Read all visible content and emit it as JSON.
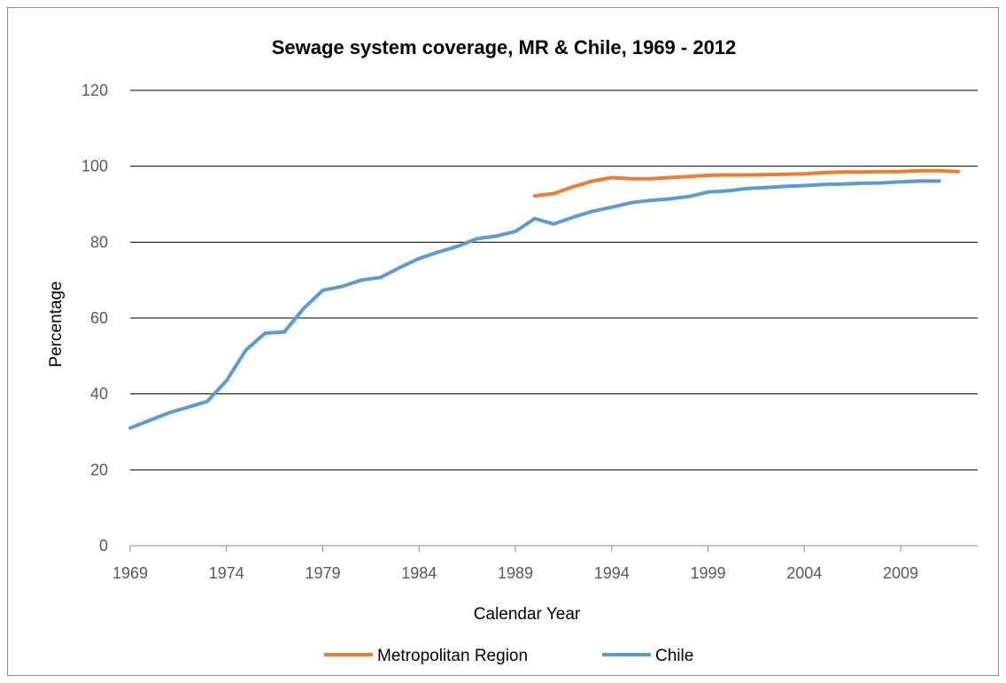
{
  "chart_data": {
    "type": "line",
    "title": "Sewage system coverage, MR & Chile, 1969 - 2012",
    "xlabel": "Calendar Year",
    "ylabel": "Percentage",
    "xlim": [
      1969,
      2013
    ],
    "ylim": [
      0,
      120
    ],
    "yticks": [
      0,
      20,
      40,
      60,
      80,
      100,
      120
    ],
    "xticks": [
      1969,
      1974,
      1979,
      1984,
      1989,
      1994,
      1999,
      2004,
      2009
    ],
    "grid": true,
    "legend_position": "bottom",
    "series": [
      {
        "name": "Metropolitan Region",
        "color": "#ED7D31",
        "x": [
          1990,
          1991,
          1992,
          1993,
          1994,
          1995,
          1996,
          1997,
          1998,
          1999,
          2000,
          2001,
          2002,
          2003,
          2004,
          2005,
          2006,
          2007,
          2008,
          2009,
          2010,
          2011,
          2012
        ],
        "y": [
          92.2,
          92.8,
          94.6,
          96.1,
          97.0,
          96.7,
          96.7,
          97.0,
          97.3,
          97.6,
          97.7,
          97.7,
          97.8,
          97.9,
          98.0,
          98.3,
          98.5,
          98.5,
          98.6,
          98.6,
          98.8,
          98.8,
          98.6
        ]
      },
      {
        "name": "Chile",
        "color": "#5B9BD5",
        "x": [
          1969,
          1970,
          1971,
          1972,
          1973,
          1974,
          1975,
          1976,
          1977,
          1978,
          1979,
          1980,
          1981,
          1982,
          1983,
          1984,
          1985,
          1986,
          1987,
          1988,
          1989,
          1990,
          1991,
          1992,
          1993,
          1994,
          1995,
          1996,
          1997,
          1998,
          1999,
          2000,
          2001,
          2002,
          2003,
          2004,
          2005,
          2006,
          2007,
          2008,
          2009,
          2010,
          2011
        ],
        "y": [
          31.0,
          33.0,
          35.0,
          36.5,
          38.0,
          43.5,
          51.5,
          56.0,
          56.3,
          62.5,
          67.3,
          68.3,
          70.0,
          70.7,
          73.3,
          75.7,
          77.4,
          78.9,
          80.9,
          81.6,
          82.8,
          86.2,
          84.8,
          86.6,
          88.1,
          89.2,
          90.4,
          91.0,
          91.4,
          92.0,
          93.2,
          93.5,
          94.1,
          94.4,
          94.7,
          94.9,
          95.2,
          95.3,
          95.5,
          95.6,
          95.9,
          96.1,
          96.1
        ]
      }
    ]
  }
}
